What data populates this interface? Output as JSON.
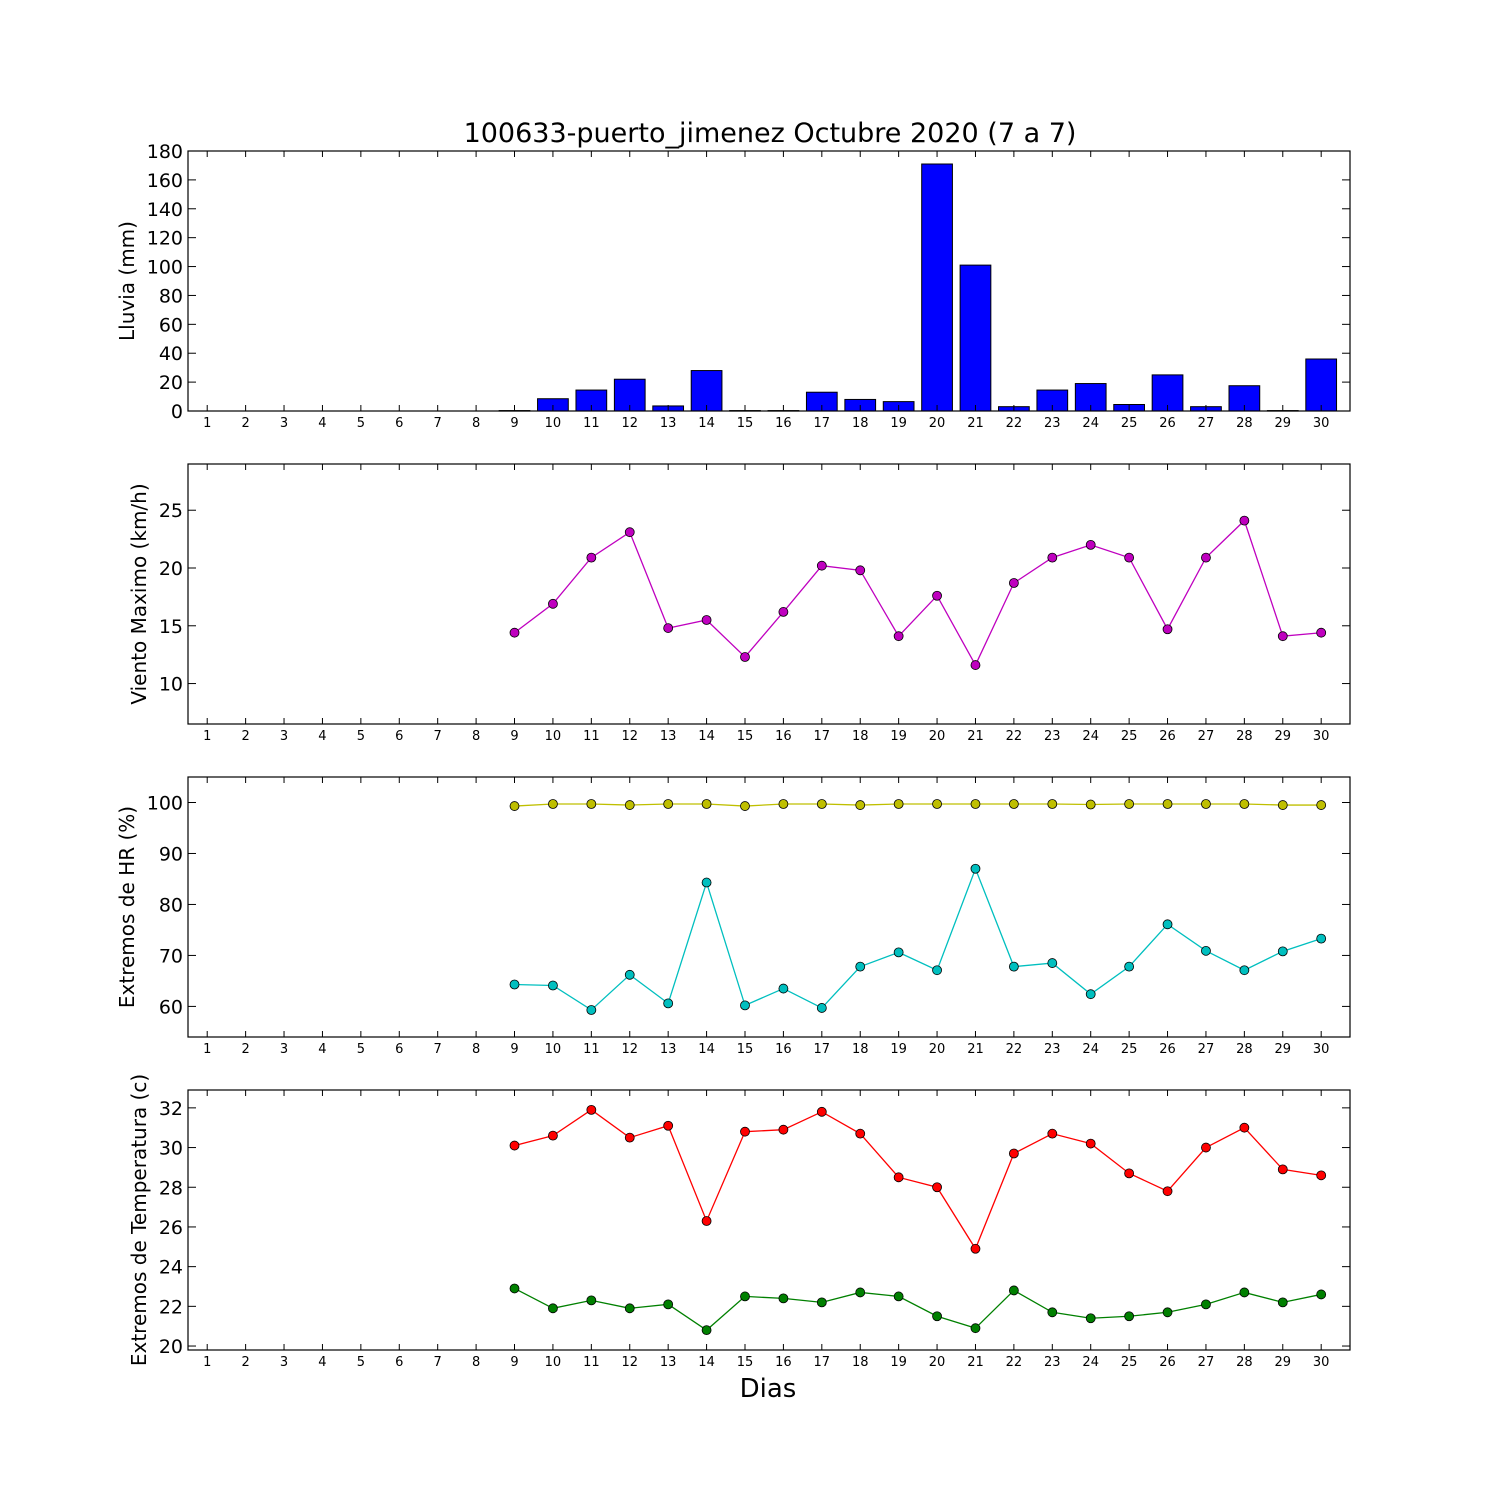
{
  "figure": {
    "title": "100633-puerto_jimenez Octubre 2020  (7 a 7)",
    "xlabel": "Dias"
  },
  "chart_data": [
    {
      "type": "bar",
      "ylabel": "Lluvia (mm)",
      "categories": [
        "1",
        "2",
        "3",
        "4",
        "5",
        "6",
        "7",
        "8",
        "9",
        "10",
        "11",
        "12",
        "13",
        "14",
        "15",
        "16",
        "17",
        "18",
        "19",
        "20",
        "21",
        "22",
        "23",
        "24",
        "25",
        "26",
        "27",
        "28",
        "29",
        "30"
      ],
      "ylim": [
        0,
        180
      ],
      "yticks": [
        0,
        20,
        40,
        60,
        80,
        100,
        120,
        140,
        160,
        180
      ],
      "series": [
        {
          "color": "#0000ff",
          "values": [
            null,
            null,
            null,
            null,
            null,
            null,
            null,
            null,
            0.3,
            8.5,
            14.5,
            22,
            3.5,
            28,
            0.3,
            0.3,
            13,
            8,
            6.5,
            171,
            101,
            3,
            14.5,
            19,
            4.5,
            25,
            3,
            17.5,
            0.3,
            36
          ]
        }
      ]
    },
    {
      "type": "line",
      "ylabel": "Viento Maximo (km/h)",
      "categories": [
        "1",
        "2",
        "3",
        "4",
        "5",
        "6",
        "7",
        "8",
        "9",
        "10",
        "11",
        "12",
        "13",
        "14",
        "15",
        "16",
        "17",
        "18",
        "19",
        "20",
        "21",
        "22",
        "23",
        "24",
        "25",
        "26",
        "27",
        "28",
        "29",
        "30"
      ],
      "ylim": [
        6.5,
        29
      ],
      "yticks": [
        10,
        15,
        20,
        25
      ],
      "series": [
        {
          "color": "#bf00bf",
          "values": [
            null,
            null,
            null,
            null,
            null,
            null,
            null,
            null,
            14.4,
            16.9,
            20.9,
            23.1,
            14.8,
            15.5,
            12.3,
            16.2,
            20.2,
            19.8,
            14.1,
            17.6,
            11.6,
            18.7,
            20.9,
            22,
            20.9,
            14.7,
            20.9,
            24.1,
            14.1,
            14.4
          ]
        }
      ]
    },
    {
      "type": "line",
      "ylabel": "Extremos de HR (%)",
      "categories": [
        "1",
        "2",
        "3",
        "4",
        "5",
        "6",
        "7",
        "8",
        "9",
        "10",
        "11",
        "12",
        "13",
        "14",
        "15",
        "16",
        "17",
        "18",
        "19",
        "20",
        "21",
        "22",
        "23",
        "24",
        "25",
        "26",
        "27",
        "28",
        "29",
        "30"
      ],
      "ylim": [
        54,
        105
      ],
      "yticks": [
        60,
        70,
        80,
        90,
        100
      ],
      "series": [
        {
          "color": "#bfbf00",
          "values": [
            null,
            null,
            null,
            null,
            null,
            null,
            null,
            null,
            99.3,
            99.7,
            99.7,
            99.5,
            99.7,
            99.7,
            99.3,
            99.7,
            99.7,
            99.5,
            99.7,
            99.7,
            99.7,
            99.7,
            99.7,
            99.6,
            99.7,
            99.7,
            99.7,
            99.7,
            99.5,
            99.5
          ]
        },
        {
          "color": "#00bfbf",
          "values": [
            null,
            null,
            null,
            null,
            null,
            null,
            null,
            null,
            64.3,
            64.1,
            59.3,
            66.2,
            60.6,
            84.3,
            60.2,
            63.5,
            59.7,
            67.8,
            70.6,
            67.1,
            87,
            67.8,
            68.5,
            62.4,
            67.8,
            76.1,
            70.9,
            67.1,
            70.8,
            73.3
          ]
        }
      ]
    },
    {
      "type": "line",
      "ylabel": "Extremos de Temperatura (c)",
      "categories": [
        "1",
        "2",
        "3",
        "4",
        "5",
        "6",
        "7",
        "8",
        "9",
        "10",
        "11",
        "12",
        "13",
        "14",
        "15",
        "16",
        "17",
        "18",
        "19",
        "20",
        "21",
        "22",
        "23",
        "24",
        "25",
        "26",
        "27",
        "28",
        "29",
        "30"
      ],
      "ylim": [
        19.8,
        32.9
      ],
      "yticks": [
        20,
        22,
        24,
        26,
        28,
        30,
        32
      ],
      "series": [
        {
          "color": "#ff0000",
          "values": [
            null,
            null,
            null,
            null,
            null,
            null,
            null,
            null,
            30.1,
            30.6,
            31.9,
            30.5,
            31.1,
            26.3,
            30.8,
            30.9,
            31.8,
            30.7,
            28.5,
            28,
            24.9,
            29.7,
            30.7,
            30.2,
            28.7,
            27.8,
            30,
            31,
            28.9,
            28.6
          ]
        },
        {
          "color": "#008000",
          "values": [
            null,
            null,
            null,
            null,
            null,
            null,
            null,
            null,
            22.9,
            21.9,
            22.3,
            21.9,
            22.1,
            20.8,
            22.5,
            22.4,
            22.2,
            22.7,
            22.5,
            21.5,
            20.9,
            22.8,
            21.7,
            21.4,
            21.5,
            21.7,
            22.1,
            22.7,
            22.2,
            22.6
          ]
        }
      ]
    }
  ]
}
